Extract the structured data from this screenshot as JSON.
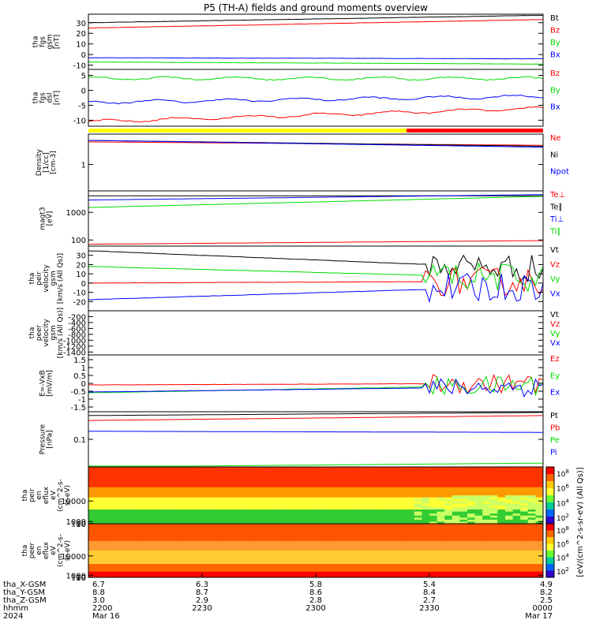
{
  "title": "P5 (TH-A) fields and ground moments overview",
  "colors": {
    "black": "#000000",
    "red": "#ff0000",
    "green": "#00dd00",
    "blue": "#0000ff",
    "yellow": "#ffff00"
  },
  "chart_data": [
    {
      "type": "line",
      "panel": "fgs_gsm",
      "ylabel": [
        "tha",
        "fgs",
        "gsm",
        "[nT]"
      ],
      "yticks": [
        30,
        20,
        10,
        0,
        -10
      ],
      "ylim": [
        -14,
        38
      ],
      "series": [
        {
          "name": "Bt",
          "color": "#000000",
          "start": 30,
          "end": 37
        },
        {
          "name": "Bz",
          "color": "#ff0000",
          "start": 25,
          "end": 33
        },
        {
          "name": "By",
          "color": "#00dd00",
          "start": -7,
          "end": -9
        },
        {
          "name": "Bx",
          "color": "#0000ff",
          "start": -3,
          "end": -4
        }
      ]
    },
    {
      "type": "line",
      "panel": "fgs_dsl",
      "ylabel": [
        "tha",
        "fgs",
        "dsl",
        "[nT]"
      ],
      "yticks": [
        5,
        0,
        -5,
        -10
      ],
      "ylim": [
        -12,
        7
      ],
      "series": [
        {
          "name": "Bz",
          "color": "#ff0000",
          "start": -10.5,
          "end": -6
        },
        {
          "name": "By",
          "color": "#00dd00",
          "start": 4,
          "end": 4
        },
        {
          "name": "Bx",
          "color": "#0000ff",
          "start": -4,
          "end": -2
        }
      ]
    },
    {
      "type": "line",
      "panel": "density",
      "scale": "log",
      "ylabel": [
        "Density",
        "[1/cc]",
        "[cm-3]"
      ],
      "yticks": [
        1
      ],
      "ylim": [
        0.3,
        4
      ],
      "series": [
        {
          "name": "Ne",
          "color": "#ff0000",
          "start": 2.8,
          "end": 2.4
        },
        {
          "name": "Ni",
          "color": "#000000",
          "start": 3.0,
          "end": 2.3
        },
        {
          "name": "Npot",
          "color": "#0000ff",
          "start": 3.0,
          "end": 2.2
        }
      ]
    },
    {
      "type": "line",
      "panel": "temperature",
      "scale": "log",
      "ylabel": [
        "magt3",
        "[eV]"
      ],
      "yticks": [
        1000,
        100
      ],
      "ylim": [
        60,
        6000
      ],
      "series": [
        {
          "name": "Te⊥",
          "color": "#ff0000",
          "start": 70,
          "end": 95
        },
        {
          "name": "Te∥",
          "color": "#000000",
          "start": 4000,
          "end": 4000
        },
        {
          "name": "Ti⊥",
          "color": "#0000ff",
          "start": 2800,
          "end": 4400
        },
        {
          "name": "Ti∥",
          "color": "#00dd00",
          "start": 1500,
          "end": 3800
        }
      ]
    },
    {
      "type": "line",
      "panel": "peir_velocity",
      "ylabel": [
        "tha",
        "peir",
        "velocity",
        "gsm",
        "[km/s (All Qs)]"
      ],
      "yticks": [
        30,
        20,
        10,
        0,
        -10,
        -20
      ],
      "ylim": [
        -30,
        40
      ],
      "series": [
        {
          "name": "Vt",
          "color": "#000000",
          "start": 35,
          "end": 15
        },
        {
          "name": "Vz",
          "color": "#ff0000",
          "start": 0,
          "end": 2
        },
        {
          "name": "Vy",
          "color": "#00dd00",
          "start": 18,
          "end": 5
        },
        {
          "name": "Vx",
          "color": "#0000ff",
          "start": -18,
          "end": -3
        }
      ]
    },
    {
      "type": "line",
      "panel": "peer_velocity",
      "ylabel": [
        "tha",
        "peer",
        "velocity",
        "gsm",
        "[km/s (All Qs)]"
      ],
      "yticks": [
        -200,
        -400,
        -600,
        -800,
        -1000,
        -1200,
        -1400
      ],
      "ylim": [
        -1500,
        0
      ],
      "series": [
        {
          "name": "Vt",
          "color": "#000000"
        },
        {
          "name": "Vz",
          "color": "#ff0000"
        },
        {
          "name": "Vy",
          "color": "#00dd00"
        },
        {
          "name": "Vx",
          "color": "#0000ff"
        }
      ]
    },
    {
      "type": "line",
      "panel": "efield",
      "ylabel": [
        "E=-VxB",
        "[mV/m]"
      ],
      "yticks": [
        1.5,
        1.0,
        0.5,
        0.0,
        -0.5,
        -1.0,
        -1.5
      ],
      "ylim": [
        -1.8,
        1.8
      ],
      "series": [
        {
          "name": "Ez",
          "color": "#ff0000",
          "start": -0.1,
          "end": 0.0
        },
        {
          "name": "Ey",
          "color": "#00dd00",
          "start": -0.6,
          "end": -0.1
        },
        {
          "name": "Ex",
          "color": "#0000ff",
          "start": -0.55,
          "end": -0.2
        }
      ]
    },
    {
      "type": "line",
      "panel": "pressure",
      "scale": "log",
      "ylabel": [
        "Pressure",
        "[nPa]"
      ],
      "yticks": [
        0.1
      ],
      "ylim": [
        0.02,
        0.5
      ],
      "series": [
        {
          "name": "Pt",
          "color": "#000000",
          "start": 0.4,
          "end": 0.48
        },
        {
          "name": "Pb",
          "color": "#ff0000",
          "start": 0.3,
          "end": 0.4
        },
        {
          "name": "Pe",
          "color": "#00dd00",
          "start": 0.02,
          "end": 0.025
        },
        {
          "name": "Pi",
          "color": "#0000ff",
          "start": 0.16,
          "end": 0.15
        }
      ]
    },
    {
      "type": "heatmap",
      "panel": "peir_spectrogram",
      "ylabel": [
        "tha",
        "peir",
        "en",
        "eflux",
        "eV",
        "(cm^2-s-",
        "sr-eV)"
      ],
      "yticks": [
        10000,
        1000,
        100,
        10
      ],
      "ylim": [
        5,
        25000
      ],
      "colorbar_ticks": [
        "10^8",
        "10^6",
        "10^4",
        "10^2"
      ]
    },
    {
      "type": "heatmap",
      "panel": "peer_spectrogram",
      "ylabel": [
        "tha",
        "peer",
        "en",
        "eflux",
        "eV",
        "(cm^2-s-",
        "sr-eV)"
      ],
      "yticks": [
        10000,
        1000,
        100,
        10
      ],
      "ylim": [
        5,
        25000
      ],
      "colorbar_ticks": [
        "10^8",
        "10^6",
        "10^4",
        "10^2"
      ]
    }
  ],
  "colorbar_label": "[eV/(cm^2-s-sr-eV) (All Qs)]",
  "mode_bar": {
    "segments": [
      {
        "color": "#ffff00",
        "from": 0,
        "to": 0.7
      },
      {
        "color": "#ff0000",
        "from": 0.7,
        "to": 1
      }
    ]
  },
  "time_axis": {
    "row_labels": [
      "tha_X-GSM",
      "tha_Y-GSM",
      "tha_Z-GSM",
      "hhmm",
      "2024"
    ],
    "columns": [
      {
        "x": "6.7",
        "y": "8.8",
        "z": "3.0",
        "hhmm": "2200",
        "date": "Mar 16"
      },
      {
        "x": "6.3",
        "y": "8.7",
        "z": "2.9",
        "hhmm": "2230",
        "date": ""
      },
      {
        "x": "5.8",
        "y": "8.6",
        "z": "2.8",
        "hhmm": "2300",
        "date": ""
      },
      {
        "x": "5.4",
        "y": "8.4",
        "z": "2.7",
        "hhmm": "2330",
        "date": ""
      },
      {
        "x": "4.9",
        "y": "8.2",
        "z": "2.5",
        "hhmm": "0000",
        "date": "Mar 17"
      }
    ]
  }
}
